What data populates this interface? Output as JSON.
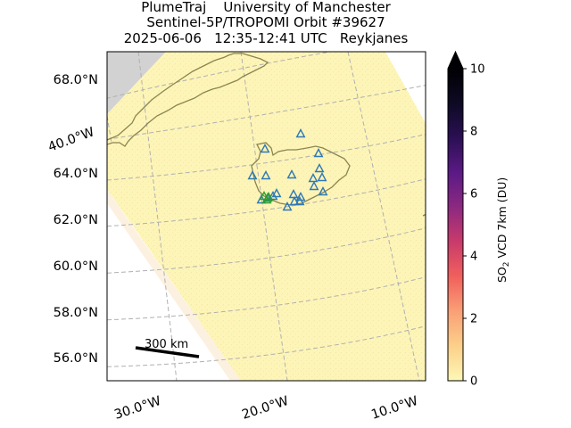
{
  "title": {
    "line1": "PlumeTraj    University of Manchester",
    "line2": "Sentinel-5P/TROPOMI Orbit #39627",
    "line3": "2025-06-06   12:35-12:41 UTC   Reykjanes"
  },
  "map": {
    "lat_labels": [
      "68.0°N",
      "64.0°N",
      "62.0°N",
      "60.0°N",
      "58.0°N",
      "56.0°N"
    ],
    "side_lon_label": "40.0°W",
    "lon_labels": [
      "30.0°W",
      "20.0°W",
      "10.0°W"
    ],
    "scale_bar_label": "300 km",
    "swath_fill_color": "#fdf5b8",
    "no_data_color": "#d2d2d2",
    "coastline_color": "#8a8550",
    "volcano_marker_color": "#2f79b5",
    "active_volcano_color": "#2ca02c"
  },
  "colorbar": {
    "label_prefix": "SO",
    "label_sub": "2",
    "label_suffix": " VCD 7km (DU)",
    "ticks": [
      "0",
      "2",
      "4",
      "6",
      "8",
      "10"
    ],
    "min": 0,
    "max": 10,
    "extend": "max",
    "colors": [
      "#fdf7b6",
      "#fcd08a",
      "#f9a076",
      "#f1605d",
      "#c93b6a",
      "#8c2981",
      "#5b1a85",
      "#2b0f54",
      "#0e0a24",
      "#000004"
    ]
  }
}
